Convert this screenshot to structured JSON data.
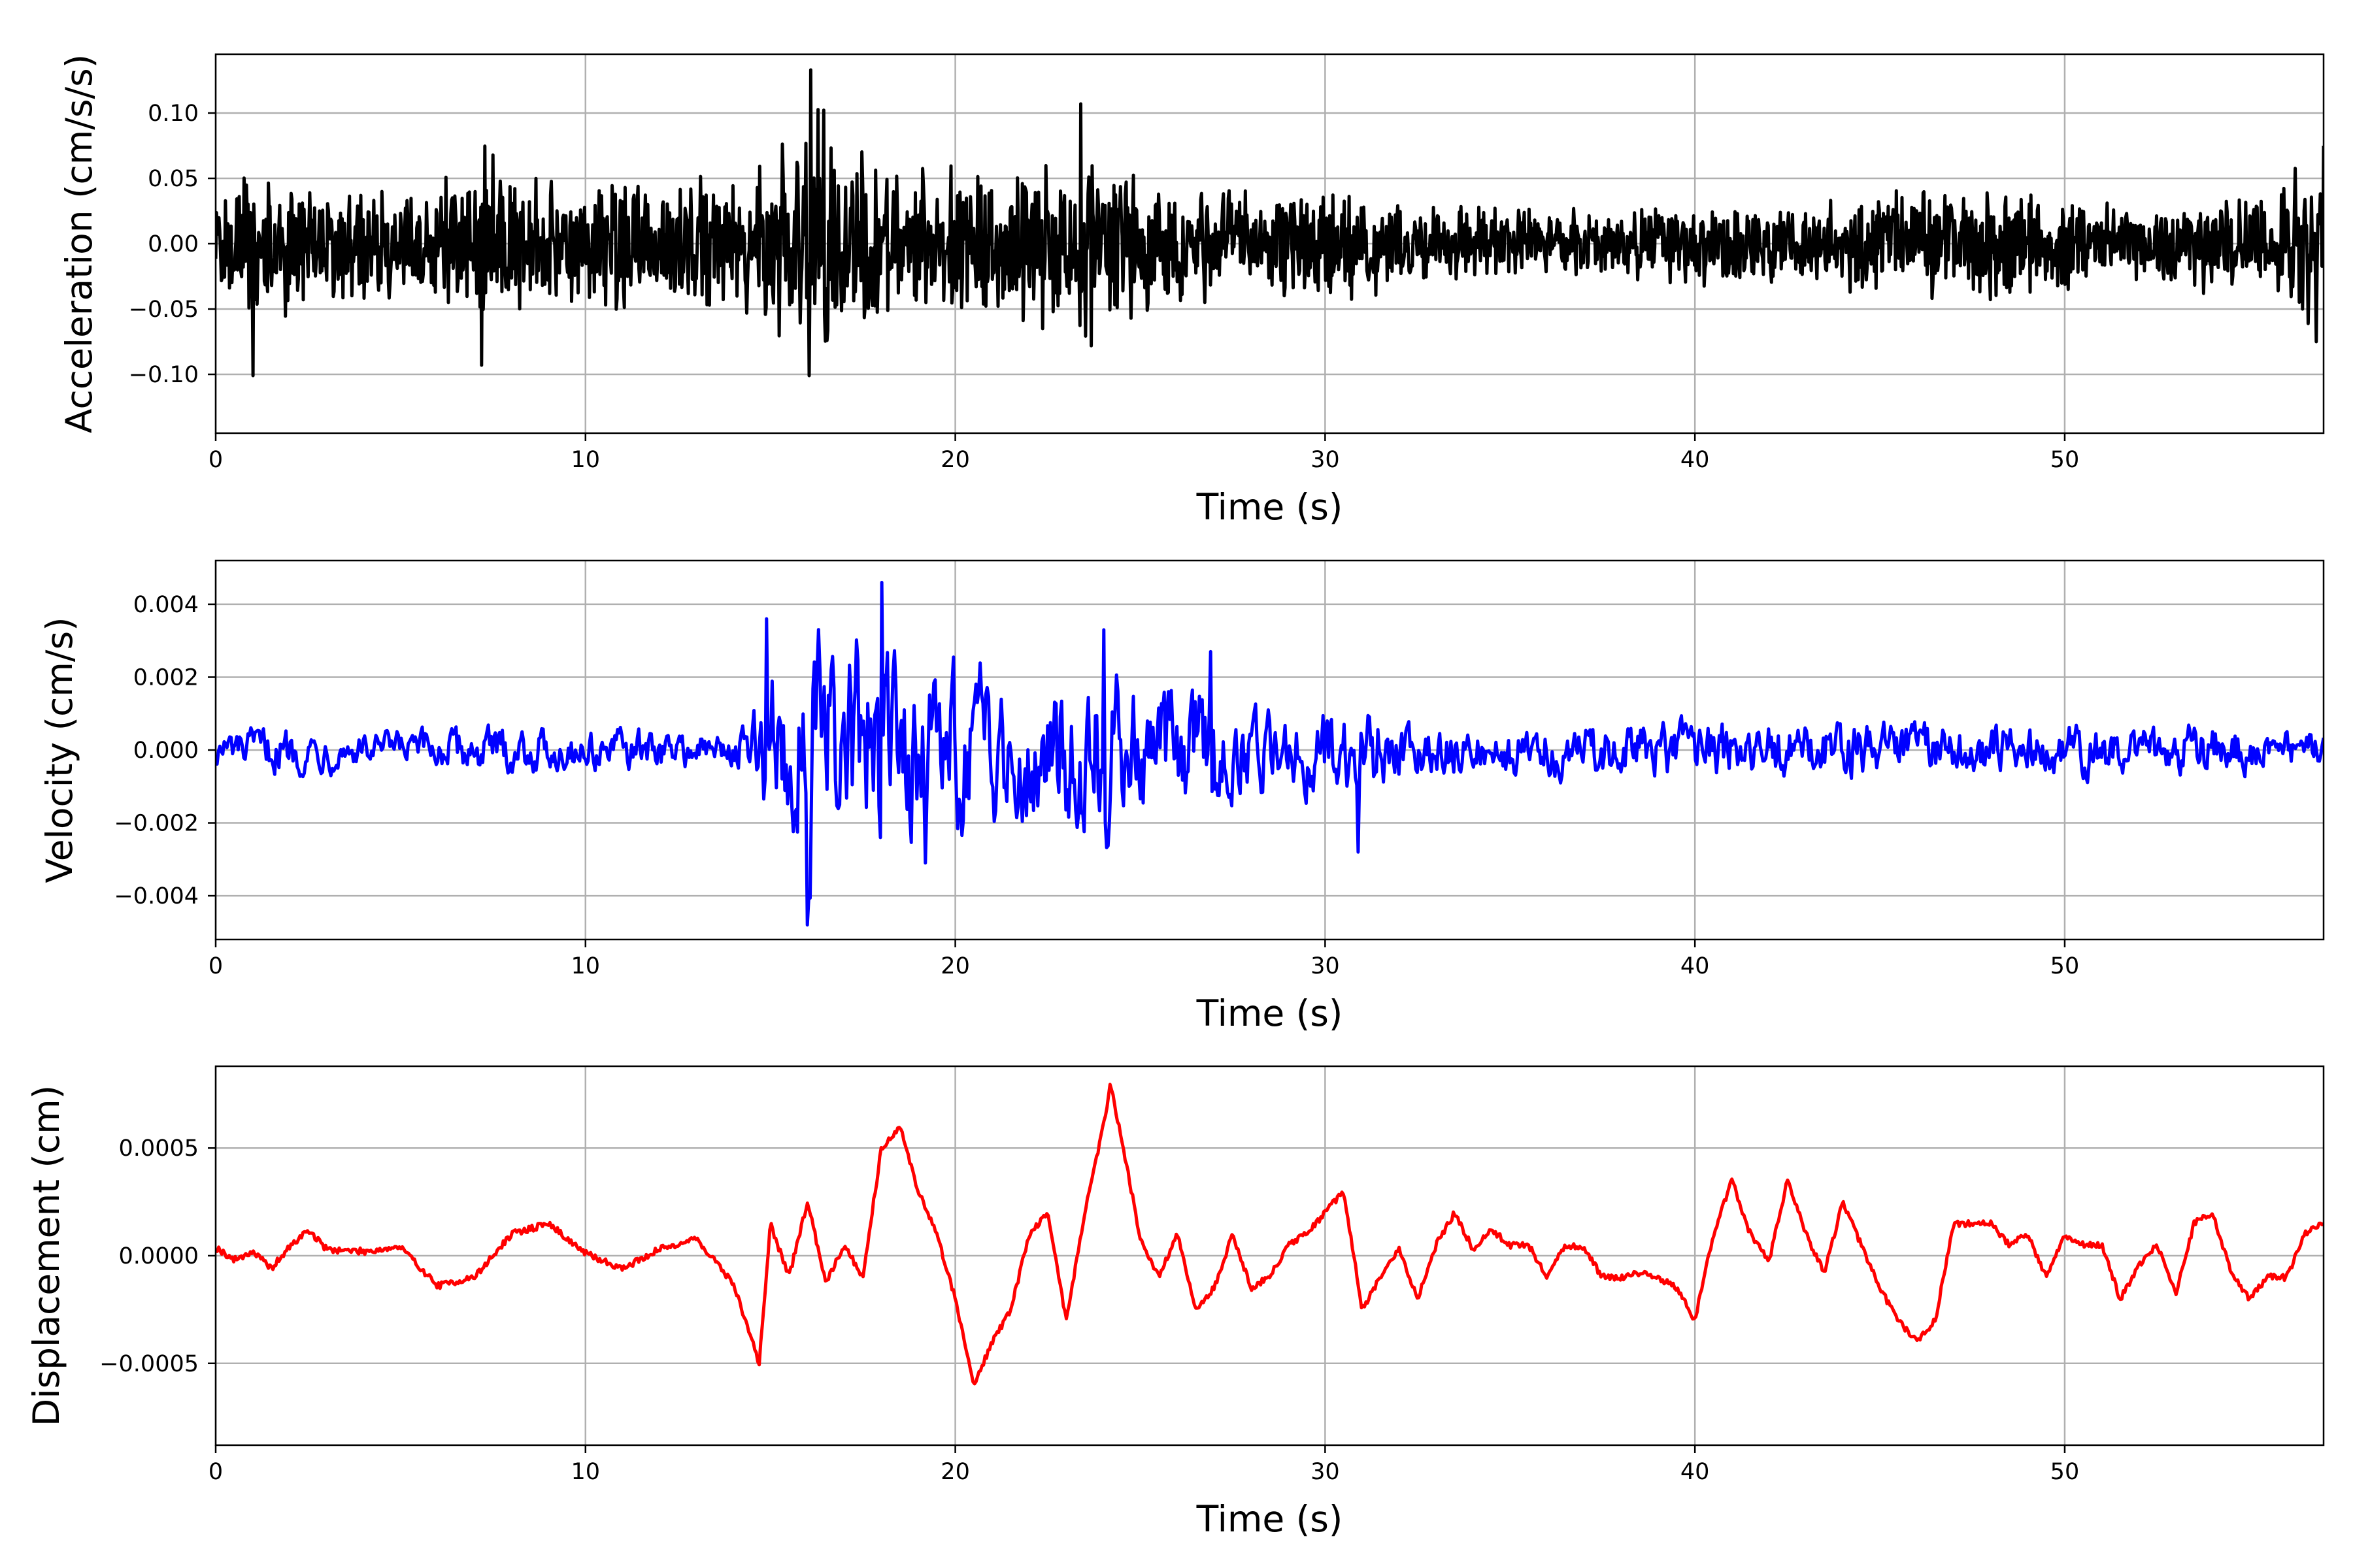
{
  "figure": {
    "background": "#ffffff",
    "grid_color": "#b0b0b0"
  },
  "chart_data": [
    {
      "type": "line",
      "xlabel": "Time (s)",
      "ylabel": "Acceleration (cm/s/s)",
      "xlim": [
        0,
        57
      ],
      "ylim": [
        -0.145,
        0.145
      ],
      "xticks": [
        0,
        10,
        20,
        30,
        40,
        50
      ],
      "xtick_labels": [
        "0",
        "10",
        "20",
        "30",
        "40",
        "50"
      ],
      "yticks": [
        0.1,
        0.05,
        0.0,
        -0.05,
        -0.1
      ],
      "ytick_labels": [
        "0.10",
        "0.05",
        "0.00",
        "−0.05",
        "−0.10"
      ],
      "grid": true,
      "color": "#000000",
      "series": [
        {
          "t": [
            0.0,
            1.0,
            2.0,
            3.0,
            4.0,
            5.0,
            6.0,
            7.0,
            7.3,
            8.0,
            9.0,
            10.0,
            11.0,
            12.0,
            13.0,
            14.0,
            15.0,
            16.0,
            16.2,
            17.0,
            18.0,
            19.0,
            20.0,
            21.0,
            22.0,
            23.0,
            23.5,
            24.0,
            25.0,
            26.0,
            27.0,
            28.0,
            29.0,
            30.0,
            31.0,
            32.0,
            33.0,
            34.0,
            35.0,
            36.0,
            37.0,
            38.0,
            39.0,
            40.0,
            41.0,
            42.0,
            43.0,
            44.0,
            45.0,
            46.0,
            47.0,
            48.0,
            49.0,
            50.0,
            51.0,
            52.0,
            53.0,
            54.0,
            55.0,
            56.0,
            57.0
          ],
          "amplitude": [
            0.04,
            0.07,
            0.06,
            0.055,
            0.05,
            0.05,
            0.055,
            0.065,
            0.085,
            0.06,
            0.055,
            0.06,
            0.065,
            0.06,
            0.06,
            0.055,
            0.08,
            0.1,
            0.12,
            0.08,
            0.07,
            0.065,
            0.06,
            0.06,
            0.065,
            0.07,
            0.09,
            0.07,
            0.065,
            0.055,
            0.05,
            0.045,
            0.045,
            0.045,
            0.05,
            0.04,
            0.035,
            0.03,
            0.03,
            0.03,
            0.03,
            0.03,
            0.035,
            0.035,
            0.035,
            0.035,
            0.035,
            0.04,
            0.045,
            0.045,
            0.05,
            0.045,
            0.045,
            0.04,
            0.035,
            0.035,
            0.035,
            0.04,
            0.04,
            0.06,
            0.07
          ],
          "peaks": [
            [
              16.1,
              0.133
            ],
            [
              16.05,
              -0.101
            ],
            [
              1.0,
              -0.101
            ],
            [
              23.4,
              0.107
            ],
            [
              7.2,
              -0.093
            ],
            [
              57.0,
              0.075
            ],
            [
              56.8,
              -0.075
            ]
          ]
        }
      ]
    },
    {
      "type": "line",
      "xlabel": "Time (s)",
      "ylabel": "Velocity (cm/s)",
      "xlim": [
        0,
        57
      ],
      "ylim": [
        -0.0052,
        0.0052
      ],
      "xticks": [
        0,
        10,
        20,
        30,
        40,
        50
      ],
      "xtick_labels": [
        "0",
        "10",
        "20",
        "30",
        "40",
        "50"
      ],
      "yticks": [
        0.004,
        0.002,
        0.0,
        -0.002,
        -0.004
      ],
      "ytick_labels": [
        "0.004",
        "0.002",
        "0.000",
        "−0.002",
        "−0.004"
      ],
      "grid": true,
      "color": "#0000ff",
      "series": [
        {
          "t": [
            0.0,
            2.0,
            4.0,
            6.0,
            8.0,
            10.0,
            12.0,
            14.0,
            14.7,
            15.0,
            16.0,
            17.0,
            18.0,
            19.0,
            20.0,
            21.0,
            22.0,
            23.0,
            24.0,
            25.0,
            26.0,
            27.0,
            28.0,
            29.0,
            30.0,
            31.0,
            32.0,
            34.0,
            36.0,
            38.0,
            40.0,
            42.0,
            44.0,
            46.0,
            48.0,
            50.0,
            52.0,
            54.0,
            56.0,
            57.0
          ],
          "amplitude": [
            0.0006,
            0.0008,
            0.0006,
            0.0007,
            0.0008,
            0.0007,
            0.0007,
            0.0006,
            0.0015,
            0.0035,
            0.0042,
            0.0035,
            0.004,
            0.0028,
            0.0028,
            0.0025,
            0.0026,
            0.0028,
            0.003,
            0.0024,
            0.0022,
            0.0024,
            0.0014,
            0.0013,
            0.0015,
            0.002,
            0.001,
            0.0008,
            0.0009,
            0.0009,
            0.001,
            0.001,
            0.001,
            0.0009,
            0.0009,
            0.0009,
            0.0008,
            0.0009,
            0.0007,
            0.0007
          ],
          "peaks": [
            [
              18.0,
              0.0046
            ],
            [
              16.0,
              -0.0048
            ],
            [
              14.9,
              0.0036
            ],
            [
              24.0,
              0.0033
            ],
            [
              19.2,
              -0.0031
            ],
            [
              30.9,
              -0.0028
            ],
            [
              26.9,
              0.0027
            ]
          ]
        }
      ]
    },
    {
      "type": "line",
      "xlabel": "Time (s)",
      "ylabel": "Displacement (cm)",
      "xlim": [
        0,
        57
      ],
      "ylim": [
        -0.00088,
        0.00088
      ],
      "xticks": [
        0,
        10,
        20,
        30,
        40,
        50
      ],
      "xtick_labels": [
        "0",
        "10",
        "20",
        "30",
        "40",
        "50"
      ],
      "yticks": [
        0.0005,
        0.0,
        -0.0005
      ],
      "ytick_labels": [
        "0.0005",
        "0.0000",
        "−0.0005"
      ],
      "grid": true,
      "color": "#ff0000",
      "series": [
        {
          "t": [
            0.0,
            0.5,
            1.0,
            1.5,
            2.0,
            2.5,
            3.0,
            4.0,
            5.0,
            6.0,
            7.0,
            8.0,
            9.0,
            9.5,
            10.0,
            11.0,
            12.0,
            13.0,
            14.0,
            14.7,
            15.0,
            15.5,
            16.0,
            16.5,
            17.0,
            17.5,
            18.0,
            18.5,
            19.0,
            19.5,
            20.0,
            20.5,
            21.0,
            21.5,
            22.0,
            22.5,
            23.0,
            23.5,
            24.0,
            24.2,
            24.6,
            25.0,
            25.5,
            26.0,
            26.5,
            27.0,
            27.5,
            28.0,
            28.5,
            29.0,
            29.5,
            30.0,
            30.5,
            31.0,
            31.5,
            32.0,
            32.5,
            33.0,
            33.5,
            34.0,
            34.5,
            35.0,
            35.5,
            36.0,
            36.5,
            37.0,
            37.5,
            38.0,
            38.5,
            39.0,
            39.5,
            40.0,
            40.5,
            41.0,
            41.5,
            42.0,
            42.5,
            43.0,
            43.5,
            44.0,
            44.5,
            45.0,
            45.5,
            46.0,
            46.5,
            47.0,
            47.5,
            48.0,
            48.5,
            49.0,
            49.5,
            50.0,
            50.5,
            51.0,
            51.5,
            52.0,
            52.5,
            53.0,
            53.5,
            54.0,
            54.5,
            55.0,
            55.5,
            56.0,
            56.5,
            57.0
          ],
          "values": [
            4e-05,
            -2e-05,
            2e-05,
            -6e-05,
            4e-05,
            0.00012,
            3e-05,
            2e-05,
            4e-05,
            -0.00014,
            -0.0001,
            0.0001,
            0.00015,
            8e-05,
            1e-05,
            -6e-05,
            3e-05,
            8e-05,
            -0.00013,
            -0.0005,
            0.00015,
            -0.0001,
            0.00025,
            -0.00012,
            5e-05,
            -0.0001,
            0.0005,
            0.0006,
            0.0003,
            0.0001,
            -0.0002,
            -0.0006,
            -0.0004,
            -0.00025,
            0.0001,
            0.0002,
            -0.0003,
            0.0002,
            0.0006,
            0.0008,
            0.00045,
            8e-05,
            -0.0001,
            0.0001,
            -0.00025,
            -0.00015,
            0.0001,
            -0.00015,
            -0.0001,
            5e-05,
            0.0001,
            0.0002,
            0.0003,
            -0.00025,
            -0.0001,
            3e-05,
            -0.0002,
            5e-05,
            0.0002,
            3e-05,
            0.00012,
            5e-05,
            5e-05,
            -0.0001,
            5e-05,
            3e-05,
            -0.0001,
            -0.0001,
            -8e-05,
            -0.0001,
            -0.00015,
            -0.0003,
            0.0001,
            0.00035,
            0.0001,
            -3e-05,
            0.00035,
            0.0001,
            -8e-05,
            0.00025,
            5e-05,
            -0.00015,
            -0.0003,
            -0.0004,
            -0.0003,
            0.00015,
            0.00015,
            0.00015,
            5e-05,
            0.0001,
            -0.0001,
            0.0001,
            5e-05,
            5e-05,
            -0.0002,
            -5e-05,
            5e-05,
            -0.00018,
            0.00015,
            0.0002,
            -8e-05,
            -0.0002,
            -0.0001,
            -0.0001,
            0.0001,
            0.00015
          ]
        }
      ]
    }
  ]
}
